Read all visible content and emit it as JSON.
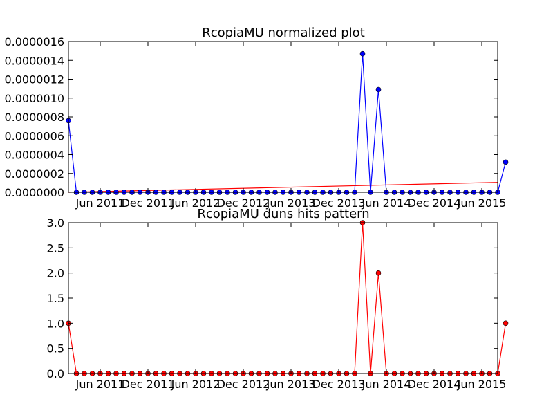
{
  "chart_data": [
    {
      "type": "line",
      "title": "RcopiaMU normalized plot",
      "xlabel": "",
      "ylabel": "",
      "x_tick_labels": [
        "Jun 2011",
        "Dec 2011",
        "Jun 2012",
        "Dec 2012",
        "Jun 2013",
        "Dec 2013",
        "Jun 2014",
        "Dec 2014",
        "Jun 2015"
      ],
      "y_tick_labels": [
        "0.0000000",
        "0.0000002",
        "0.0000004",
        "0.0000006",
        "0.0000008",
        "0.0000010",
        "0.0000012",
        "0.0000014",
        "0.0000016"
      ],
      "ylim": [
        0,
        1.6e-06
      ],
      "x_start": "2011-02",
      "x_end": "2015-08",
      "grid": false,
      "series": [
        {
          "color": "#0000ff",
          "marker": "circle",
          "values": [
            7.6e-07,
            0,
            0,
            0,
            0,
            0,
            0,
            0,
            0,
            0,
            0,
            0,
            0,
            0,
            0,
            0,
            0,
            0,
            0,
            0,
            0,
            0,
            0,
            0,
            0,
            0,
            0,
            0,
            0,
            0,
            0,
            0,
            0,
            0,
            0,
            0,
            0,
            1.47e-06,
            0,
            1.09e-06,
            0,
            0,
            0,
            0,
            0,
            0,
            0,
            0,
            0,
            0,
            0,
            0,
            0,
            0,
            0,
            3.2e-07
          ]
        }
      ],
      "trend_line": {
        "color": "#ff0000",
        "start": 0,
        "end": 1.05e-07
      }
    },
    {
      "type": "line",
      "title": "RcopiaMU duns hits pattern",
      "xlabel": "",
      "ylabel": "",
      "x_tick_labels": [
        "Jun 2011",
        "Dec 2011",
        "Jun 2012",
        "Dec 2012",
        "Jun 2013",
        "Dec 2013",
        "Jun 2014",
        "Dec 2014",
        "Jun 2015"
      ],
      "y_tick_labels": [
        "0.0",
        "0.5",
        "1.0",
        "1.5",
        "2.0",
        "2.5",
        "3.0"
      ],
      "ylim": [
        0,
        3.0
      ],
      "x_start": "2011-02",
      "x_end": "2015-08",
      "grid": false,
      "series": [
        {
          "color": "#ff0000",
          "marker": "circle",
          "values": [
            1,
            0,
            0,
            0,
            0,
            0,
            0,
            0,
            0,
            0,
            0,
            0,
            0,
            0,
            0,
            0,
            0,
            0,
            0,
            0,
            0,
            0,
            0,
            0,
            0,
            0,
            0,
            0,
            0,
            0,
            0,
            0,
            0,
            0,
            0,
            0,
            0,
            3,
            0,
            2,
            0,
            0,
            0,
            0,
            0,
            0,
            0,
            0,
            0,
            0,
            0,
            0,
            0,
            0,
            0,
            1
          ]
        }
      ]
    }
  ]
}
